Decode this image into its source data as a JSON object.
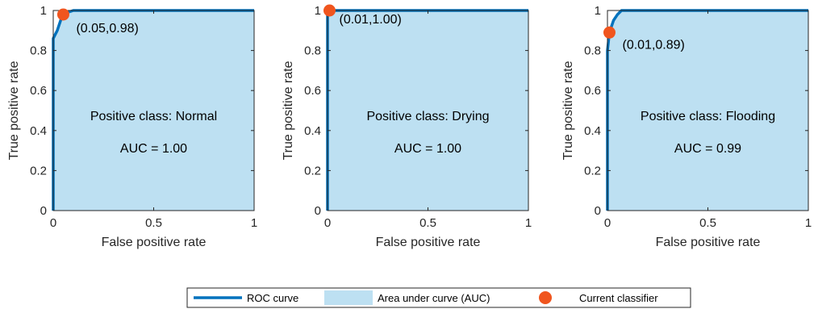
{
  "colors": {
    "roc": "#0072BD",
    "auc_fill": "#BDE0F2",
    "classifier": "#F0551E",
    "axis": "#262626"
  },
  "legend": {
    "roc": "ROC curve",
    "auc": "Area under curve (AUC)",
    "classifier": "Current classifier"
  },
  "chart_data": [
    {
      "type": "area",
      "xlabel": "False positive rate",
      "ylabel": "True positive rate",
      "xlim": [
        0,
        1
      ],
      "ylim": [
        0,
        1
      ],
      "xticks": [
        "0",
        "0.5",
        "1"
      ],
      "yticks": [
        "0",
        "0.2",
        "0.4",
        "0.6",
        "0.8",
        "1"
      ],
      "annotation_line1": "Positive class: Normal",
      "annotation_line2": "AUC = 1.00",
      "point": {
        "x": 0.05,
        "y": 0.98,
        "label": "(0.05,0.98)"
      },
      "roc_points": [
        [
          0,
          0
        ],
        [
          0,
          0.86
        ],
        [
          0.02,
          0.9
        ],
        [
          0.03,
          0.93
        ],
        [
          0.04,
          0.96
        ],
        [
          0.05,
          0.98
        ],
        [
          0.07,
          0.99
        ],
        [
          0.1,
          1.0
        ],
        [
          1,
          1.0
        ]
      ]
    },
    {
      "type": "area",
      "xlabel": "False positive rate",
      "ylabel": "True positive rate",
      "xlim": [
        0,
        1
      ],
      "ylim": [
        0,
        1
      ],
      "xticks": [
        "0",
        "0.5",
        "1"
      ],
      "yticks": [
        "0",
        "0.2",
        "0.4",
        "0.6",
        "0.8",
        "1"
      ],
      "annotation_line1": "Positive class: Drying",
      "annotation_line2": "AUC = 1.00",
      "point": {
        "x": 0.01,
        "y": 1.0,
        "label": "(0.01,1.00)"
      },
      "roc_points": [
        [
          0,
          0
        ],
        [
          0,
          0.99
        ],
        [
          0.01,
          1.0
        ],
        [
          1,
          1.0
        ]
      ]
    },
    {
      "type": "area",
      "xlabel": "False positive rate",
      "ylabel": "True positive rate",
      "xlim": [
        0,
        1
      ],
      "ylim": [
        0,
        1
      ],
      "xticks": [
        "0",
        "0.5",
        "1"
      ],
      "yticks": [
        "0",
        "0.2",
        "0.4",
        "0.6",
        "0.8",
        "1"
      ],
      "annotation_line1": "Positive class: Flooding",
      "annotation_line2": "AUC = 0.99",
      "point": {
        "x": 0.01,
        "y": 0.89,
        "label": "(0.01,0.89)"
      },
      "roc_points": [
        [
          0,
          0
        ],
        [
          0,
          0.8
        ],
        [
          0.01,
          0.89
        ],
        [
          0.02,
          0.92
        ],
        [
          0.03,
          0.95
        ],
        [
          0.05,
          0.98
        ],
        [
          0.07,
          1.0
        ],
        [
          1,
          1.0
        ]
      ]
    }
  ]
}
